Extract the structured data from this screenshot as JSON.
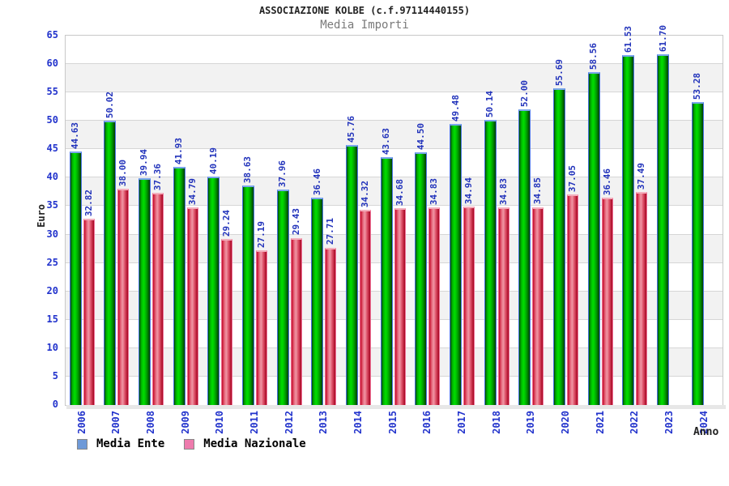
{
  "chart_data": {
    "type": "bar",
    "title": "ASSOCIAZIONE KOLBE (c.f.97114440155)",
    "subtitle": "Media Importi",
    "xlabel": "Anno",
    "ylabel": "Euro",
    "ylim": [
      0,
      65
    ],
    "ytick_step": 5,
    "grid": true,
    "legend_position": "bottom-left",
    "categories": [
      "2006",
      "2007",
      "2008",
      "2009",
      "2010",
      "2011",
      "2012",
      "2013",
      "2014",
      "2015",
      "2016",
      "2017",
      "2018",
      "2019",
      "2020",
      "2021",
      "2022",
      "2023",
      "2024"
    ],
    "series": [
      {
        "name": "Media Ente",
        "legend_color": "#6f9ad8",
        "bar_color": "green",
        "values": [
          44.63,
          50.02,
          39.94,
          41.93,
          40.19,
          38.63,
          37.96,
          36.46,
          45.76,
          43.63,
          44.5,
          49.48,
          50.14,
          52.0,
          55.69,
          58.56,
          61.53,
          61.7,
          53.28
        ]
      },
      {
        "name": "Media Nazionale",
        "legend_color": "#ee7bad",
        "bar_color": "red",
        "values": [
          32.82,
          38.0,
          37.36,
          34.79,
          29.24,
          27.19,
          29.43,
          27.71,
          34.32,
          34.68,
          34.83,
          34.94,
          34.83,
          34.85,
          37.05,
          36.46,
          37.49,
          null,
          null
        ]
      }
    ],
    "value_label_decimals": 2,
    "colors": {
      "title_text": "#222222",
      "subtitle_text": "#7a7a7a",
      "axis_text": "#2233cc",
      "value_text": "#2233bb",
      "band_gray": "#f2f2f2",
      "grid_line": "#d6d6d6",
      "plot_border": "#c8c8c8",
      "shadow": "#e7e7e7",
      "green_dark": "#034203",
      "green_bright": "#00dd00",
      "green_cap": "#7aa6ec",
      "green_edge": "#4a76e2",
      "red_dark": "#c30a28",
      "red_light": "#ef96a4",
      "red_cap": "#f3afbd",
      "red_edge": "#ee6e94"
    }
  }
}
